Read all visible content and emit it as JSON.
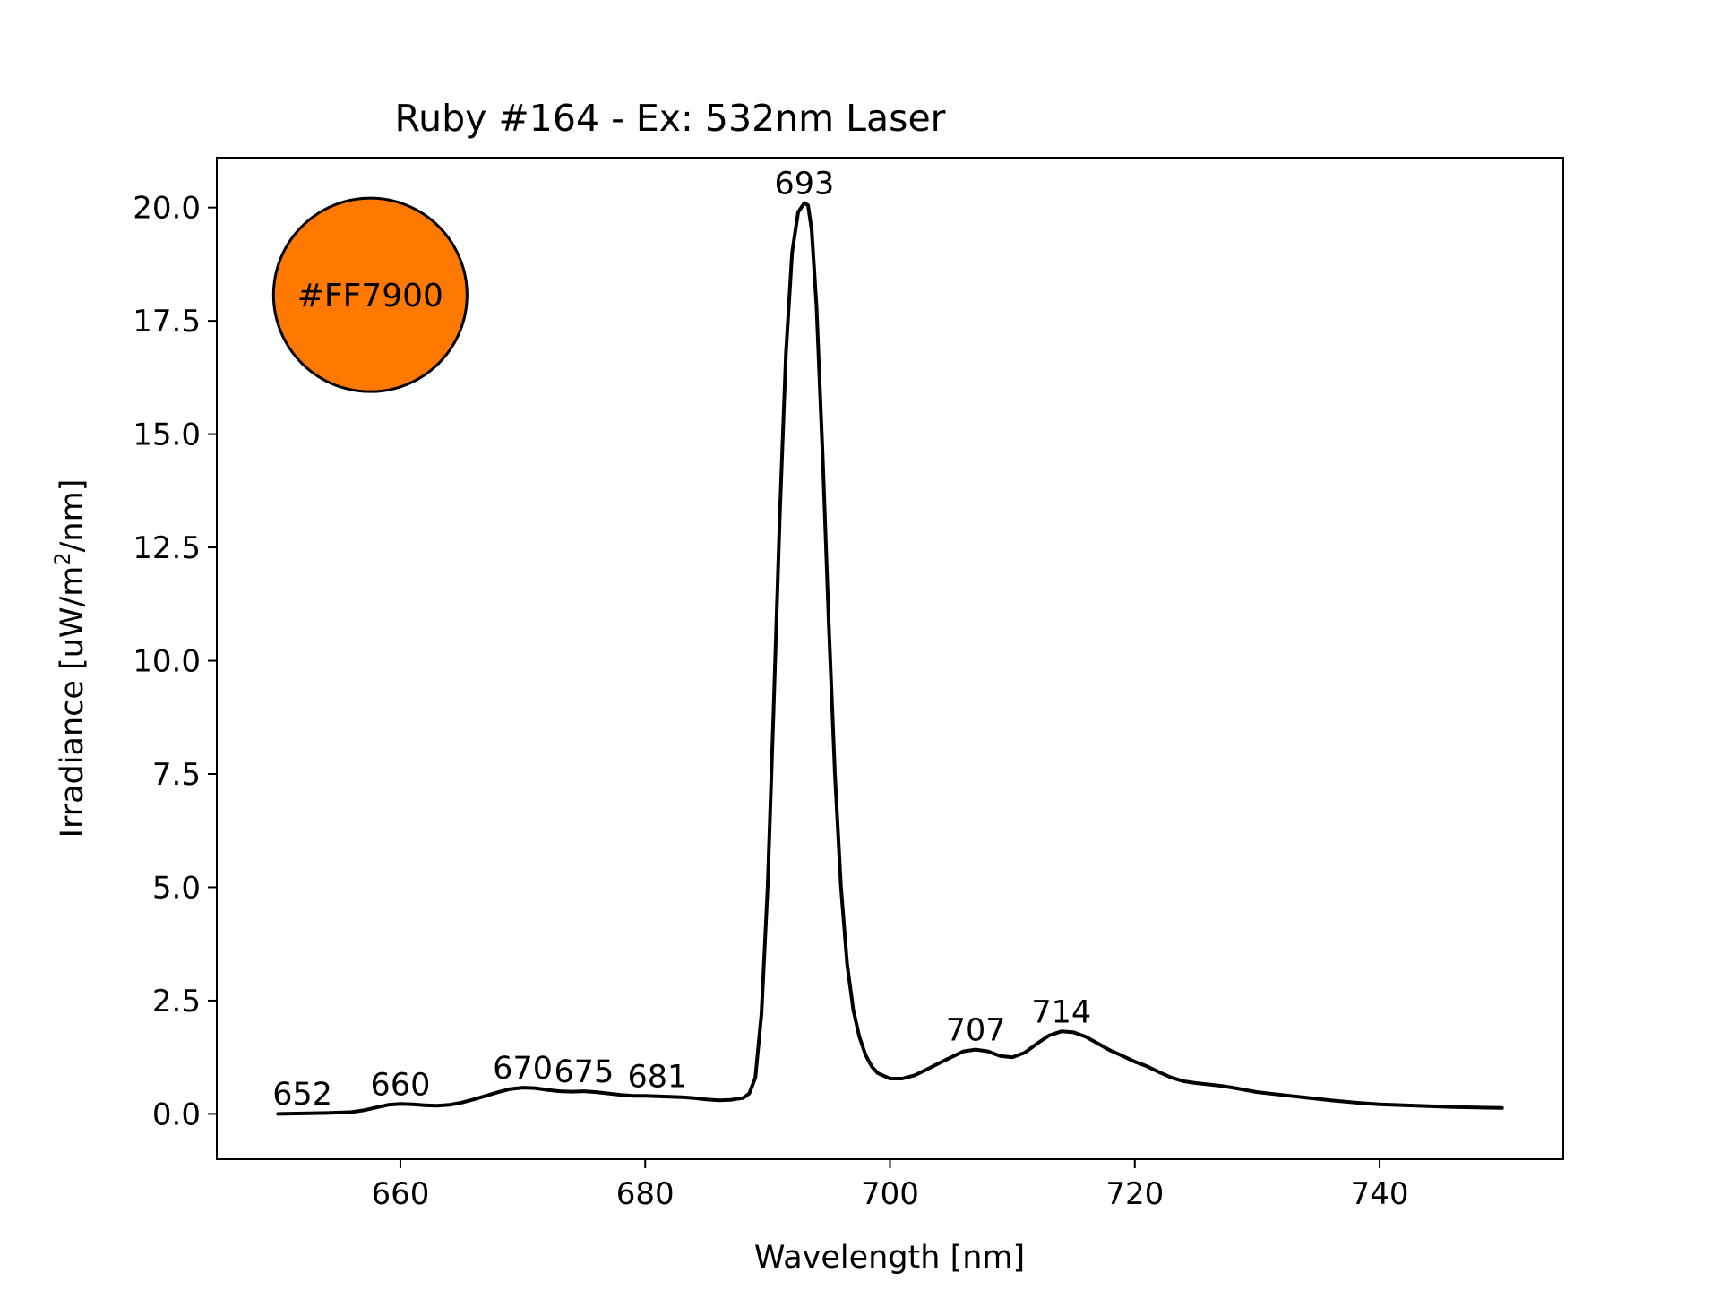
{
  "chart_data": {
    "type": "line",
    "title": "Ruby #164 - Ex: 532nm Laser",
    "xlabel": "Wavelength [nm]",
    "ylabel_parts": {
      "before": "Irradiance [uW/m",
      "superscript": "2",
      "after": "/nm]"
    },
    "xlim": [
      645,
      755
    ],
    "ylim": [
      -1.0,
      21.1
    ],
    "x_ticks": [
      660,
      680,
      700,
      720,
      740
    ],
    "x_tick_labels": [
      "660",
      "680",
      "700",
      "720",
      "740"
    ],
    "y_ticks": [
      0,
      2.5,
      5,
      7.5,
      10,
      12.5,
      15,
      17.5,
      20
    ],
    "y_tick_labels": [
      "0.0",
      "2.5",
      "5.0",
      "7.5",
      "10.0",
      "12.5",
      "15.0",
      "17.5",
      "20.0"
    ],
    "grid": false,
    "legend": "none",
    "line_color": "#000000",
    "series": [
      {
        "x": [
          650,
          652,
          654,
          656,
          657,
          658,
          659,
          660,
          661,
          662,
          663,
          664,
          665,
          666,
          667,
          668,
          669,
          670,
          671,
          672,
          673,
          674,
          675,
          676,
          677,
          678,
          679,
          680,
          681,
          682,
          683,
          684,
          685,
          686,
          687,
          688,
          688.5,
          689,
          689.5,
          690,
          690.5,
          691,
          691.5,
          692,
          692.5,
          693,
          693.3,
          693.6,
          694,
          694.5,
          695,
          695.5,
          696,
          696.5,
          697,
          697.5,
          698,
          698.5,
          699,
          700,
          701,
          702,
          703,
          704,
          705,
          706,
          707,
          708,
          709,
          710,
          711,
          712,
          713,
          714,
          715,
          716,
          717,
          718,
          719,
          720,
          721,
          722,
          723,
          724,
          725,
          726,
          727,
          728,
          729,
          730,
          732,
          734,
          736,
          738,
          740,
          742,
          744,
          746,
          748,
          750
        ],
        "y": [
          0.0,
          0.01,
          0.02,
          0.04,
          0.08,
          0.14,
          0.2,
          0.22,
          0.21,
          0.19,
          0.18,
          0.2,
          0.25,
          0.32,
          0.4,
          0.48,
          0.55,
          0.58,
          0.57,
          0.53,
          0.5,
          0.49,
          0.5,
          0.48,
          0.45,
          0.42,
          0.4,
          0.4,
          0.39,
          0.38,
          0.37,
          0.35,
          0.32,
          0.3,
          0.31,
          0.35,
          0.45,
          0.8,
          2.2,
          5.0,
          9.0,
          13.2,
          16.8,
          19.0,
          19.9,
          20.1,
          20.05,
          19.5,
          17.8,
          14.5,
          10.8,
          7.5,
          5.0,
          3.3,
          2.3,
          1.7,
          1.3,
          1.05,
          0.9,
          0.78,
          0.78,
          0.85,
          0.98,
          1.12,
          1.25,
          1.38,
          1.42,
          1.38,
          1.28,
          1.25,
          1.35,
          1.55,
          1.73,
          1.82,
          1.8,
          1.7,
          1.55,
          1.4,
          1.28,
          1.15,
          1.05,
          0.92,
          0.8,
          0.72,
          0.68,
          0.65,
          0.62,
          0.58,
          0.53,
          0.48,
          0.42,
          0.36,
          0.3,
          0.25,
          0.21,
          0.19,
          0.17,
          0.15,
          0.14,
          0.13
        ]
      }
    ],
    "annotations": [
      {
        "x": 652,
        "y": 0.01,
        "text": "652"
      },
      {
        "x": 660,
        "y": 0.22,
        "text": "660"
      },
      {
        "x": 670,
        "y": 0.58,
        "text": "670"
      },
      {
        "x": 675,
        "y": 0.5,
        "text": "675"
      },
      {
        "x": 681,
        "y": 0.39,
        "text": "681"
      },
      {
        "x": 693,
        "y": 20.1,
        "text": "693"
      },
      {
        "x": 707,
        "y": 1.42,
        "text": "707"
      },
      {
        "x": 714,
        "y": 1.82,
        "text": "714"
      }
    ],
    "color_swatch": {
      "text": "#FF7900",
      "fill": "#FF7900",
      "stroke": "#000000"
    }
  }
}
